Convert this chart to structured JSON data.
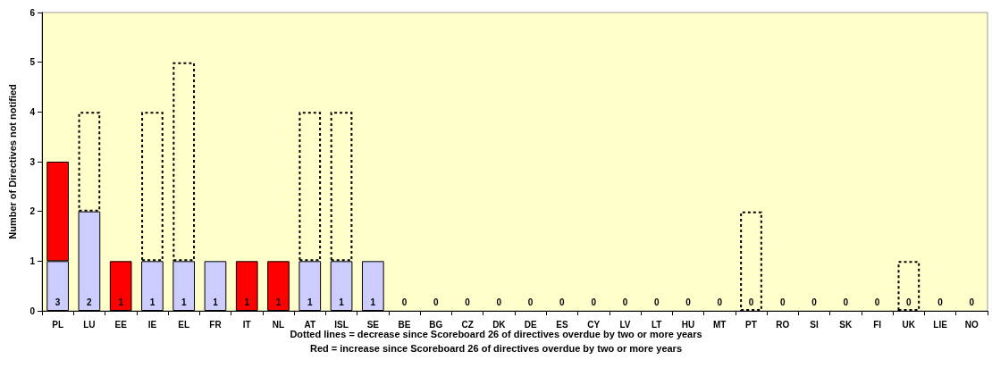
{
  "chart_data": {
    "type": "bar",
    "stacked": true,
    "ylabel": "Number of Directives not notified",
    "categories": [
      "PL",
      "LU",
      "EE",
      "IE",
      "EL",
      "FR",
      "IT",
      "NL",
      "AT",
      "ISL",
      "SE",
      "BE",
      "BG",
      "CZ",
      "DK",
      "DE",
      "ES",
      "CY",
      "LV",
      "LT",
      "HU",
      "MT",
      "PT",
      "RO",
      "SI",
      "SK",
      "FI",
      "UK",
      "LIE",
      "NO"
    ],
    "series": [
      {
        "color": "#ccccff",
        "values": [
          1,
          2,
          0,
          1,
          1,
          1,
          0,
          0,
          1,
          1,
          1,
          0,
          0,
          0,
          0,
          0,
          0,
          0,
          0,
          0,
          0,
          0,
          0,
          0,
          0,
          0,
          0,
          0,
          0,
          0
        ]
      },
      {
        "color": "#ff0000",
        "values": [
          2,
          0,
          1,
          0,
          0,
          0,
          1,
          1,
          0,
          0,
          0,
          0,
          0,
          0,
          0,
          0,
          0,
          0,
          0,
          0,
          0,
          0,
          0,
          0,
          0,
          0,
          0,
          0,
          0,
          0
        ]
      },
      {
        "color": "#000000",
        "line_style": "dotted",
        "values": [
          null,
          2,
          null,
          3,
          4,
          null,
          null,
          null,
          3,
          3,
          null,
          null,
          null,
          null,
          null,
          null,
          null,
          null,
          null,
          null,
          null,
          null,
          2,
          null,
          null,
          null,
          null,
          1,
          null,
          null
        ]
      }
    ],
    "ylim": [
      0,
      6
    ],
    "yticks": [
      0,
      1,
      2,
      3,
      4,
      5,
      6
    ],
    "annotations": [
      {
        "text": "3",
        "x": "PL",
        "y": 0
      },
      {
        "text": "2",
        "x": "LU",
        "y": 0
      },
      {
        "text": "1",
        "x": "EE",
        "y": 0
      },
      {
        "text": "1",
        "x": "IE",
        "y": 0
      },
      {
        "text": "1",
        "x": "EL",
        "y": 0
      },
      {
        "text": "1",
        "x": "FR",
        "y": 0
      },
      {
        "text": "1",
        "x": "IT",
        "y": 0
      },
      {
        "text": "1",
        "x": "NL",
        "y": 0
      },
      {
        "text": "1",
        "x": "AT",
        "y": 0
      },
      {
        "text": "1",
        "x": "ISL",
        "y": 0
      },
      {
        "text": "1",
        "x": "SE",
        "y": 0
      },
      {
        "text": "0",
        "x": "BE",
        "y": 0
      },
      {
        "text": "0",
        "x": "BG",
        "y": 0
      },
      {
        "text": "0",
        "x": "CZ",
        "y": 0
      },
      {
        "text": "0",
        "x": "DK",
        "y": 0
      },
      {
        "text": "0",
        "x": "DE",
        "y": 0
      },
      {
        "text": "0",
        "x": "ES",
        "y": 0
      },
      {
        "text": "0",
        "x": "CY",
        "y": 0
      },
      {
        "text": "0",
        "x": "LV",
        "y": 0
      },
      {
        "text": "0",
        "x": "LT",
        "y": 0
      },
      {
        "text": "0",
        "x": "HU",
        "y": 0
      },
      {
        "text": "0",
        "x": "MT",
        "y": 0
      },
      {
        "text": "0",
        "x": "PT",
        "y": 0
      },
      {
        "text": "0",
        "x": "RO",
        "y": 0
      },
      {
        "text": "0",
        "x": "SI",
        "y": 0
      },
      {
        "text": "0",
        "x": "SK",
        "y": 0
      },
      {
        "text": "0",
        "x": "FI",
        "y": 0
      },
      {
        "text": "0",
        "x": "UK",
        "y": 0
      },
      {
        "text": "0",
        "x": "LIE",
        "y": 0
      },
      {
        "text": "0",
        "x": "NO",
        "y": 0
      },
      "Dotted lines = decrease since Scoreboard 26 of directives overdue by two or more years",
      "Red = increase since Scoreboard 26 of directives overdue by two or more years"
    ]
  }
}
